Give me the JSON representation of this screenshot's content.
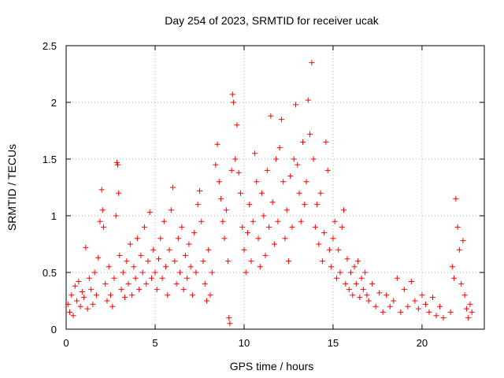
{
  "chart_data": {
    "type": "scatter",
    "title": "Day 254 of 2023, SRMTID for receiver ucak",
    "xlabel": "GPS time / hours",
    "ylabel": "SRMTID / TECUs",
    "xlim": [
      0,
      23.5
    ],
    "ylim": [
      0,
      2.5
    ],
    "xticks": [
      0,
      5,
      10,
      15,
      20
    ],
    "yticks": [
      0,
      0.5,
      1,
      1.5,
      2,
      2.5
    ],
    "xtick_labels": [
      "0",
      "5",
      "10",
      "15",
      "20"
    ],
    "ytick_labels": [
      "0",
      "0.5",
      "1",
      "1.5",
      "2",
      "2.5"
    ],
    "grid": true,
    "marker": "+",
    "color": "#ff0000",
    "series": [
      {
        "name": "SRMTID",
        "points": [
          [
            0.1,
            0.22
          ],
          [
            0.2,
            0.15
          ],
          [
            0.3,
            0.3
          ],
          [
            0.4,
            0.12
          ],
          [
            0.5,
            0.38
          ],
          [
            0.6,
            0.25
          ],
          [
            0.7,
            0.42
          ],
          [
            0.8,
            0.2
          ],
          [
            0.9,
            0.33
          ],
          [
            1.0,
            0.28
          ],
          [
            1.1,
            0.72
          ],
          [
            1.2,
            0.18
          ],
          [
            1.3,
            0.45
          ],
          [
            1.4,
            0.35
          ],
          [
            1.5,
            0.22
          ],
          [
            1.6,
            0.5
          ],
          [
            1.7,
            0.3
          ],
          [
            1.8,
            0.63
          ],
          [
            1.9,
            0.95
          ],
          [
            2.0,
            1.23
          ],
          [
            2.05,
            1.05
          ],
          [
            2.1,
            0.9
          ],
          [
            2.2,
            0.4
          ],
          [
            2.3,
            0.25
          ],
          [
            2.4,
            0.55
          ],
          [
            2.5,
            0.3
          ],
          [
            2.6,
            0.2
          ],
          [
            2.7,
            0.45
          ],
          [
            2.8,
            1.0
          ],
          [
            2.85,
            1.47
          ],
          [
            2.9,
            1.45
          ],
          [
            2.95,
            1.2
          ],
          [
            3.0,
            0.65
          ],
          [
            3.1,
            0.35
          ],
          [
            3.2,
            0.5
          ],
          [
            3.3,
            0.28
          ],
          [
            3.4,
            0.6
          ],
          [
            3.5,
            0.4
          ],
          [
            3.6,
            0.75
          ],
          [
            3.7,
            0.3
          ],
          [
            3.8,
            0.55
          ],
          [
            3.9,
            0.45
          ],
          [
            4.0,
            0.8
          ],
          [
            4.1,
            0.35
          ],
          [
            4.2,
            0.65
          ],
          [
            4.3,
            0.5
          ],
          [
            4.4,
            0.9
          ],
          [
            4.5,
            0.4
          ],
          [
            4.6,
            0.6
          ],
          [
            4.7,
            1.03
          ],
          [
            4.8,
            0.45
          ],
          [
            4.9,
            0.7
          ],
          [
            5.0,
            0.5
          ],
          [
            5.1,
            0.35
          ],
          [
            5.2,
            0.62
          ],
          [
            5.3,
            0.8
          ],
          [
            5.4,
            0.45
          ],
          [
            5.5,
            0.95
          ],
          [
            5.6,
            0.55
          ],
          [
            5.7,
            0.3
          ],
          [
            5.8,
            0.7
          ],
          [
            5.9,
            1.05
          ],
          [
            6.0,
            1.25
          ],
          [
            6.1,
            0.6
          ],
          [
            6.2,
            0.4
          ],
          [
            6.3,
            0.8
          ],
          [
            6.4,
            0.5
          ],
          [
            6.5,
            0.9
          ],
          [
            6.6,
            0.35
          ],
          [
            6.7,
            0.65
          ],
          [
            6.8,
            0.45
          ],
          [
            6.9,
            0.75
          ],
          [
            7.0,
            0.55
          ],
          [
            7.1,
            0.3
          ],
          [
            7.2,
            0.85
          ],
          [
            7.3,
            0.5
          ],
          [
            7.4,
            1.1
          ],
          [
            7.5,
            1.22
          ],
          [
            7.6,
            0.95
          ],
          [
            7.7,
            0.6
          ],
          [
            7.8,
            0.4
          ],
          [
            7.9,
            0.25
          ],
          [
            8.0,
            0.7
          ],
          [
            8.1,
            0.3
          ],
          [
            8.2,
            0.5
          ],
          [
            8.4,
            1.45
          ],
          [
            8.5,
            1.63
          ],
          [
            8.6,
            1.3
          ],
          [
            8.7,
            1.15
          ],
          [
            8.8,
            0.95
          ],
          [
            8.9,
            0.8
          ],
          [
            9.0,
            1.05
          ],
          [
            9.1,
            0.6
          ],
          [
            9.15,
            0.1
          ],
          [
            9.2,
            0.05
          ],
          [
            9.3,
            1.4
          ],
          [
            9.35,
            2.07
          ],
          [
            9.4,
            2.0
          ],
          [
            9.5,
            1.5
          ],
          [
            9.6,
            1.8
          ],
          [
            9.7,
            1.38
          ],
          [
            9.8,
            1.2
          ],
          [
            9.9,
            0.9
          ],
          [
            10.0,
            0.7
          ],
          [
            10.1,
            0.5
          ],
          [
            10.2,
            0.85
          ],
          [
            10.3,
            1.1
          ],
          [
            10.4,
            0.6
          ],
          [
            10.5,
            0.95
          ],
          [
            10.6,
            1.55
          ],
          [
            10.7,
            1.3
          ],
          [
            10.8,
            0.8
          ],
          [
            10.9,
            0.55
          ],
          [
            11.0,
            1.2
          ],
          [
            11.1,
            1.0
          ],
          [
            11.2,
            0.65
          ],
          [
            11.3,
            1.4
          ],
          [
            11.4,
            0.9
          ],
          [
            11.5,
            1.88
          ],
          [
            11.6,
            1.12
          ],
          [
            11.7,
            0.75
          ],
          [
            11.8,
            1.5
          ],
          [
            11.9,
            0.95
          ],
          [
            12.0,
            1.6
          ],
          [
            12.1,
            1.85
          ],
          [
            12.2,
            1.3
          ],
          [
            12.3,
            0.8
          ],
          [
            12.4,
            1.05
          ],
          [
            12.5,
            0.6
          ],
          [
            12.6,
            1.35
          ],
          [
            12.7,
            0.9
          ],
          [
            12.8,
            1.5
          ],
          [
            12.9,
            1.98
          ],
          [
            13.0,
            1.45
          ],
          [
            13.1,
            1.2
          ],
          [
            13.2,
            0.95
          ],
          [
            13.3,
            1.65
          ],
          [
            13.4,
            1.1
          ],
          [
            13.5,
            1.3
          ],
          [
            13.6,
            2.02
          ],
          [
            13.7,
            1.72
          ],
          [
            13.8,
            2.35
          ],
          [
            13.9,
            1.5
          ],
          [
            14.0,
            0.9
          ],
          [
            14.1,
            1.1
          ],
          [
            14.2,
            0.75
          ],
          [
            14.3,
            1.2
          ],
          [
            14.4,
            0.6
          ],
          [
            14.5,
            0.85
          ],
          [
            14.6,
            1.65
          ],
          [
            14.7,
            1.4
          ],
          [
            14.8,
            0.7
          ],
          [
            14.9,
            0.55
          ],
          [
            15.0,
            0.8
          ],
          [
            15.1,
            0.95
          ],
          [
            15.2,
            0.45
          ],
          [
            15.3,
            0.7
          ],
          [
            15.4,
            0.5
          ],
          [
            15.5,
            0.9
          ],
          [
            15.6,
            1.05
          ],
          [
            15.7,
            0.4
          ],
          [
            15.8,
            0.62
          ],
          [
            15.9,
            0.35
          ],
          [
            16.0,
            0.5
          ],
          [
            16.1,
            0.3
          ],
          [
            16.2,
            0.55
          ],
          [
            16.3,
            0.4
          ],
          [
            16.4,
            0.6
          ],
          [
            16.5,
            0.28
          ],
          [
            16.6,
            0.45
          ],
          [
            16.7,
            0.35
          ],
          [
            16.8,
            0.5
          ],
          [
            16.9,
            0.3
          ],
          [
            17.0,
            0.25
          ],
          [
            17.2,
            0.4
          ],
          [
            17.4,
            0.2
          ],
          [
            17.6,
            0.32
          ],
          [
            17.8,
            0.15
          ],
          [
            18.0,
            0.3
          ],
          [
            18.2,
            0.2
          ],
          [
            18.4,
            0.25
          ],
          [
            18.6,
            0.45
          ],
          [
            18.8,
            0.15
          ],
          [
            19.0,
            0.35
          ],
          [
            19.2,
            0.2
          ],
          [
            19.4,
            0.42
          ],
          [
            19.6,
            0.25
          ],
          [
            19.8,
            0.18
          ],
          [
            20.0,
            0.3
          ],
          [
            20.2,
            0.22
          ],
          [
            20.4,
            0.15
          ],
          [
            20.6,
            0.28
          ],
          [
            20.8,
            0.12
          ],
          [
            21.0,
            0.2
          ],
          [
            21.2,
            0.1
          ],
          [
            21.6,
            0.15
          ],
          [
            21.7,
            0.55
          ],
          [
            21.8,
            0.45
          ],
          [
            21.9,
            1.15
          ],
          [
            22.0,
            0.9
          ],
          [
            22.1,
            0.7
          ],
          [
            22.2,
            0.4
          ],
          [
            22.3,
            0.78
          ],
          [
            22.4,
            0.3
          ],
          [
            22.5,
            0.18
          ],
          [
            22.6,
            0.1
          ],
          [
            22.7,
            0.22
          ],
          [
            22.8,
            0.15
          ]
        ]
      }
    ]
  }
}
